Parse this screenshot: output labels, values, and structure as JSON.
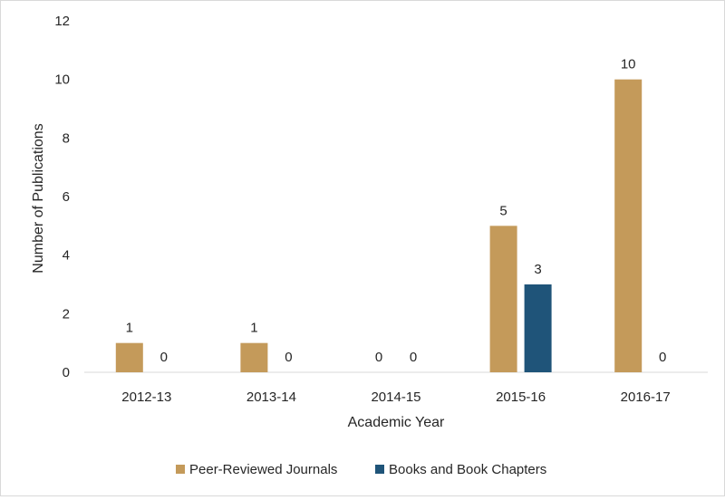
{
  "chart_data": {
    "type": "bar",
    "title": "",
    "xlabel": "Academic Year",
    "ylabel": "Number of Publications",
    "categories": [
      "2012-13",
      "2013-14",
      "2014-15",
      "2015-16",
      "2016-17"
    ],
    "series": [
      {
        "name": "Peer-Reviewed Journals",
        "values": [
          1,
          1,
          0,
          5,
          10
        ],
        "color": "#C49A5A"
      },
      {
        "name": "Books and Book Chapters",
        "values": [
          0,
          0,
          0,
          3,
          0
        ],
        "color": "#1F5479"
      }
    ],
    "ylim": [
      0,
      12
    ],
    "yticks": [
      0,
      2,
      4,
      6,
      8,
      10,
      12
    ],
    "grid": false,
    "legend_position": "bottom"
  }
}
